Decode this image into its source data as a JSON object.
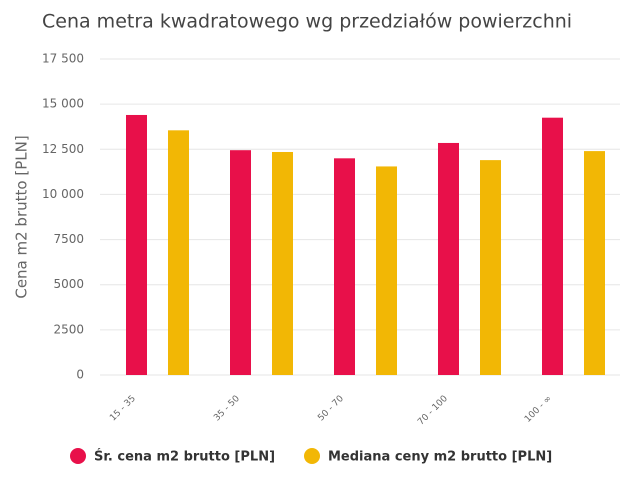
{
  "chart_data": {
    "type": "bar",
    "title": "Cena metra kwadratowego wg przedziałów powierzchni",
    "y_label": "Cena m2 brutto [PLN]",
    "categories": [
      "15 - 35",
      "35 - 50",
      "50 - 70",
      "70 - 100",
      "100 - ∞"
    ],
    "series": [
      {
        "name": "Śr. cena m2 brutto [PLN]",
        "color": "#e8104a",
        "values": [
          14400,
          12450,
          12000,
          12850,
          14250
        ]
      },
      {
        "name": "Mediana ceny m2 brutto [PLN]",
        "color": "#f2b705",
        "values": [
          13550,
          12350,
          11550,
          11900,
          12400
        ]
      }
    ],
    "ylim": [
      0,
      17500
    ],
    "yticks": [
      0,
      2500,
      5000,
      7500,
      {
        "value": 10000,
        "label": "10 000"
      },
      {
        "value": 12500,
        "label": "12 500"
      },
      {
        "value": 15000,
        "label": "15 000"
      },
      {
        "value": 17500,
        "label": "17 500"
      }
    ],
    "grid": true,
    "legend": "bottom"
  }
}
